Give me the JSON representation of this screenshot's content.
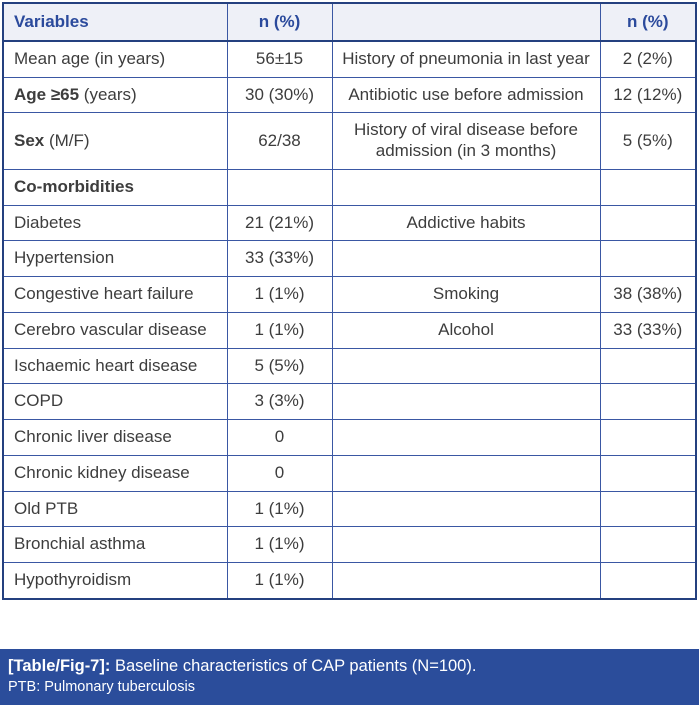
{
  "header": {
    "col1": "Variables",
    "col2": "n (%)",
    "col3": "",
    "col4": "n (%)"
  },
  "rows": [
    {
      "cells": [
        {
          "b": "",
          "t": "Mean age (in years)"
        },
        {
          "b": "",
          "t": "56±15"
        },
        {
          "b": "",
          "t": "History of pneumonia in last year"
        },
        {
          "b": "",
          "t": "2 (2%)"
        }
      ]
    },
    {
      "cells": [
        {
          "b": "Age ≥65",
          "t": " (years)"
        },
        {
          "b": "",
          "t": "30 (30%)"
        },
        {
          "b": "",
          "t": "Antibiotic use before admission"
        },
        {
          "b": "",
          "t": "12 (12%)"
        }
      ]
    },
    {
      "cells": [
        {
          "b": "Sex",
          "t": " (M/F)"
        },
        {
          "b": "",
          "t": "62/38"
        },
        {
          "b": "",
          "t": "History of viral disease before admission (in 3 months)"
        },
        {
          "b": "",
          "t": "5 (5%)"
        }
      ]
    },
    {
      "cells": [
        {
          "b": "Co-morbidities",
          "t": ""
        },
        {
          "b": "",
          "t": ""
        },
        {
          "b": "",
          "t": ""
        },
        {
          "b": "",
          "t": ""
        }
      ]
    },
    {
      "cells": [
        {
          "b": "",
          "t": "Diabetes"
        },
        {
          "b": "",
          "t": "21 (21%)"
        },
        {
          "b": "",
          "t": "Addictive habits"
        },
        {
          "b": "",
          "t": ""
        }
      ]
    },
    {
      "cells": [
        {
          "b": "",
          "t": "Hypertension"
        },
        {
          "b": "",
          "t": "33 (33%)"
        },
        {
          "b": "",
          "t": ""
        },
        {
          "b": "",
          "t": ""
        }
      ]
    },
    {
      "cells": [
        {
          "b": "",
          "t": "Congestive heart failure"
        },
        {
          "b": "",
          "t": "1 (1%)"
        },
        {
          "b": "",
          "t": "Smoking"
        },
        {
          "b": "",
          "t": "38 (38%)"
        }
      ]
    },
    {
      "cells": [
        {
          "b": "",
          "t": "Cerebro vascular disease"
        },
        {
          "b": "",
          "t": "1 (1%)"
        },
        {
          "b": "",
          "t": "Alcohol"
        },
        {
          "b": "",
          "t": "33 (33%)"
        }
      ]
    },
    {
      "cells": [
        {
          "b": "",
          "t": "Ischaemic heart disease"
        },
        {
          "b": "",
          "t": "5 (5%)"
        },
        {
          "b": "",
          "t": ""
        },
        {
          "b": "",
          "t": ""
        }
      ]
    },
    {
      "cells": [
        {
          "b": "",
          "t": "COPD"
        },
        {
          "b": "",
          "t": "3 (3%)"
        },
        {
          "b": "",
          "t": ""
        },
        {
          "b": "",
          "t": ""
        }
      ]
    },
    {
      "cells": [
        {
          "b": "",
          "t": "Chronic liver disease"
        },
        {
          "b": "",
          "t": "0"
        },
        {
          "b": "",
          "t": ""
        },
        {
          "b": "",
          "t": ""
        }
      ]
    },
    {
      "cells": [
        {
          "b": "",
          "t": "Chronic kidney disease"
        },
        {
          "b": "",
          "t": "0"
        },
        {
          "b": "",
          "t": ""
        },
        {
          "b": "",
          "t": ""
        }
      ]
    },
    {
      "cells": [
        {
          "b": "",
          "t": "Old PTB"
        },
        {
          "b": "",
          "t": "1 (1%)"
        },
        {
          "b": "",
          "t": ""
        },
        {
          "b": "",
          "t": ""
        }
      ]
    },
    {
      "cells": [
        {
          "b": "",
          "t": "Bronchial asthma"
        },
        {
          "b": "",
          "t": "1 (1%)"
        },
        {
          "b": "",
          "t": ""
        },
        {
          "b": "",
          "t": ""
        }
      ]
    },
    {
      "cells": [
        {
          "b": "",
          "t": "Hypothyroidism"
        },
        {
          "b": "",
          "t": "1 (1%)"
        },
        {
          "b": "",
          "t": ""
        },
        {
          "b": "",
          "t": ""
        }
      ]
    }
  ],
  "footer": {
    "label_bold": "[Table/Fig-7]:",
    "caption": " Baseline characteristics of CAP patients (N=100).",
    "note": "PTB: Pulmonary tuberculosis"
  },
  "colors": {
    "header_bg": "#eef0f7",
    "header_text": "#2b4a9c",
    "border_outer": "#24407f",
    "border_inner": "#3a57a3",
    "body_text": "#3d3d3d",
    "footer_bg": "#2b4d9b",
    "footer_text": "#ffffff"
  }
}
